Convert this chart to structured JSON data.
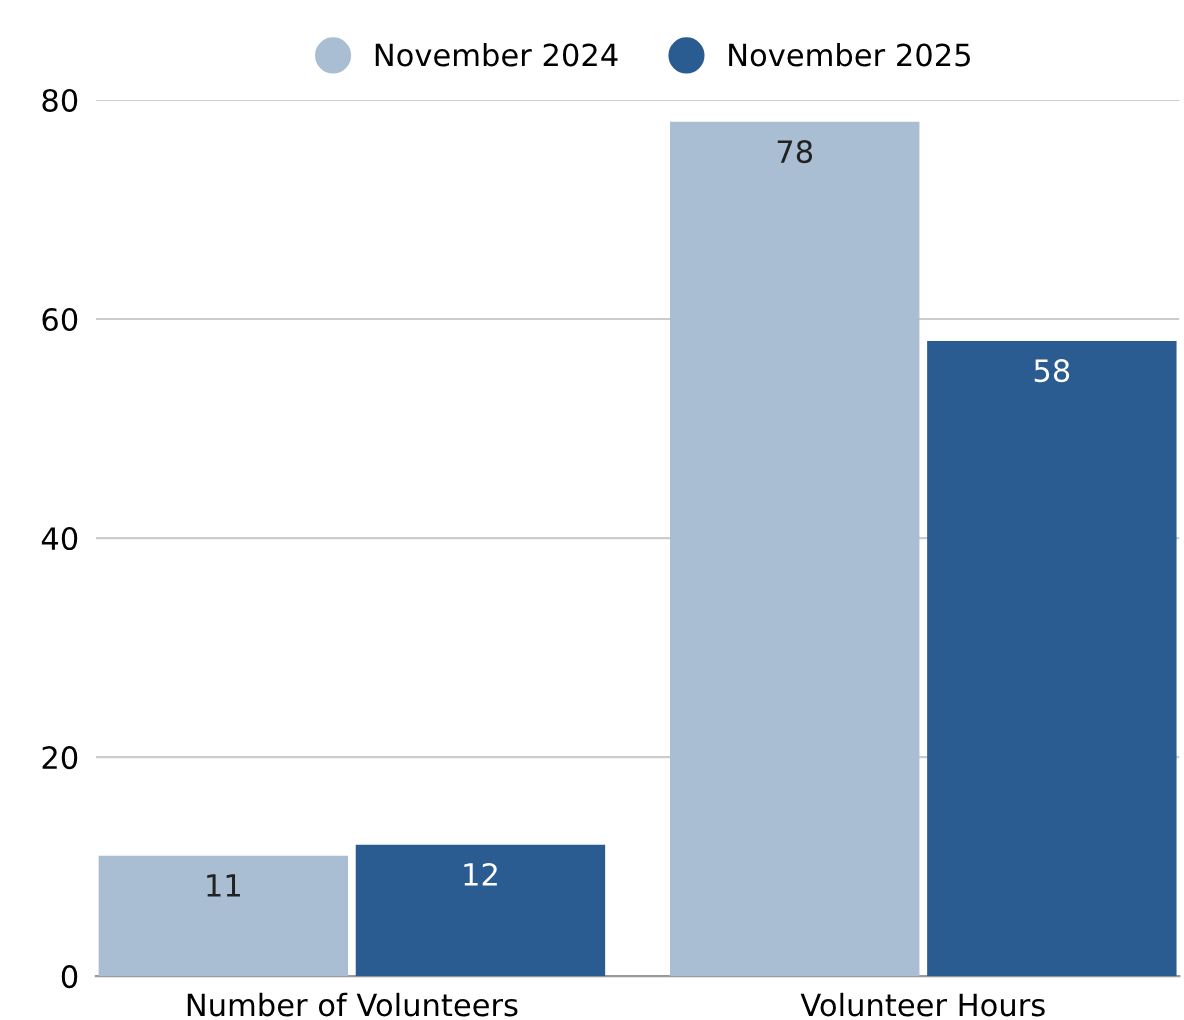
{
  "chart_data": {
    "type": "bar",
    "categories": [
      "Number of Volunteers",
      "Volunteer Hours"
    ],
    "series": [
      {
        "name": "November 2024",
        "color": "#a9bdd3",
        "values": [
          11,
          78
        ]
      },
      {
        "name": "November 2025",
        "color": "#2a5b91",
        "values": [
          12,
          58
        ]
      }
    ],
    "ylim": [
      0,
      80
    ],
    "yticks": [
      0,
      20,
      40,
      60,
      80
    ],
    "grid": "y",
    "legend": "top",
    "data_labels": true
  }
}
